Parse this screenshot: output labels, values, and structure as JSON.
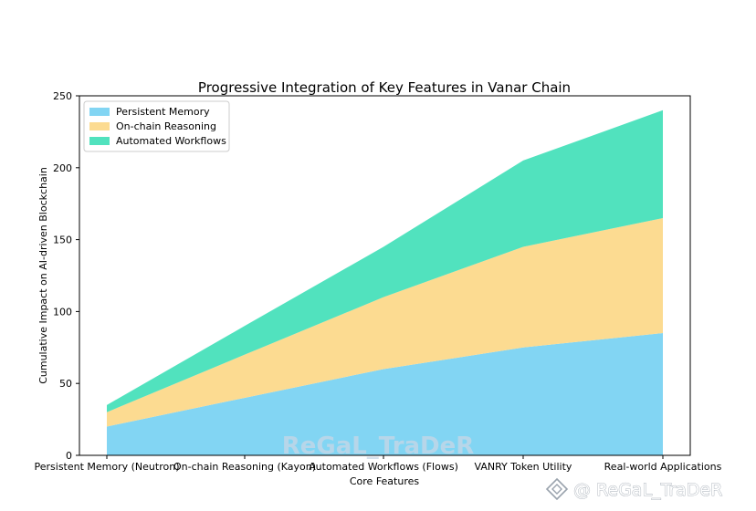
{
  "chart_data": {
    "type": "area",
    "stacked": true,
    "title": "Progressive Integration of Key Features in Vanar Chain",
    "xlabel": "Core Features",
    "ylabel": "Cumulative Impact on AI-driven Blockchain",
    "categories": [
      "Persistent Memory (Neutron)",
      "On-chain Reasoning (Kayon)",
      "Automated Workflows (Flows)",
      "VANRY Token Utility",
      "Real-world Applications"
    ],
    "series": [
      {
        "name": "Persistent Memory",
        "values": [
          20,
          40,
          60,
          75,
          85
        ],
        "color": "#82d5f3"
      },
      {
        "name": "On-chain Reasoning",
        "values": [
          10,
          30,
          50,
          70,
          80
        ],
        "color": "#fcdb91"
      },
      {
        "name": "Automated Workflows",
        "values": [
          5,
          20,
          35,
          60,
          75
        ],
        "color": "#51e2be"
      }
    ],
    "ylim": [
      0,
      250
    ],
    "yticks": [
      0,
      50,
      100,
      150,
      200,
      250
    ],
    "grid": false,
    "legend_position": "top-left"
  },
  "watermark": {
    "center_text": "ReGaL_TraDeR",
    "corner_text": "@ ReGaL_TraDeR",
    "corner_icon": "diamond-logo-icon"
  }
}
